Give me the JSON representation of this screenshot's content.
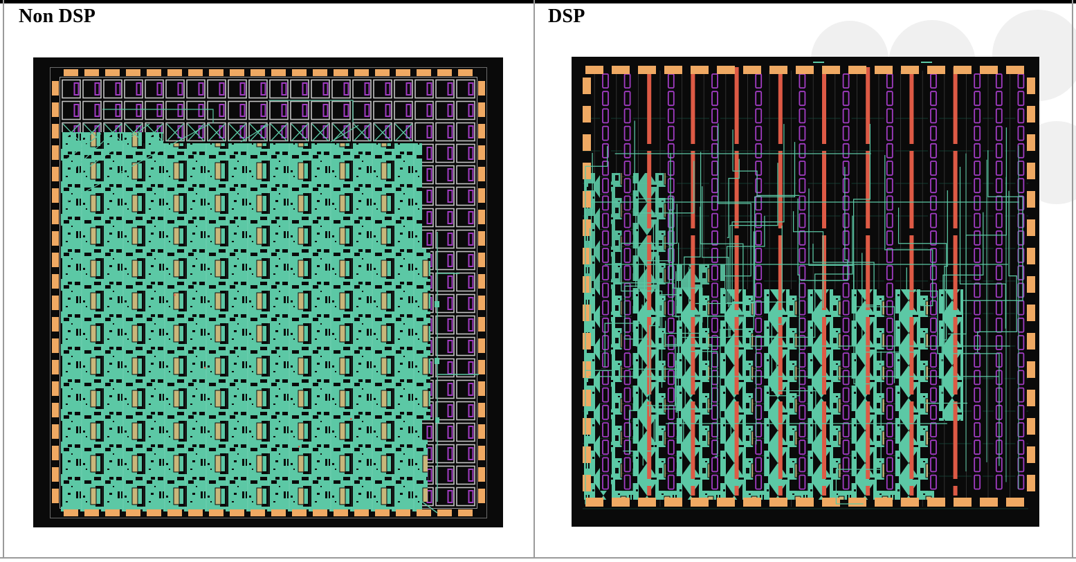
{
  "panels": [
    {
      "label": "Non DSP",
      "image_name": "fpga-layout-non-dsp"
    },
    {
      "label": "DSP",
      "image_name": "fpga-layout-dsp"
    }
  ],
  "colors": {
    "page_background": "#ffffff",
    "chip_background": "#0a0a0a",
    "routing_teal": "#5cc8a5",
    "io_pad_orange": "#efa963",
    "dsp_column_red": "#dd5a45",
    "block_purple": "#a23cc4",
    "occupied_tan": "#c9b77b",
    "grid_gray": "#c4c4c4",
    "frame_gray": "#9a9a9a",
    "table_border_gray": "#9a9a9a",
    "table_border_top_black": "#000000",
    "watermark_gray": "#f0f0f0"
  }
}
